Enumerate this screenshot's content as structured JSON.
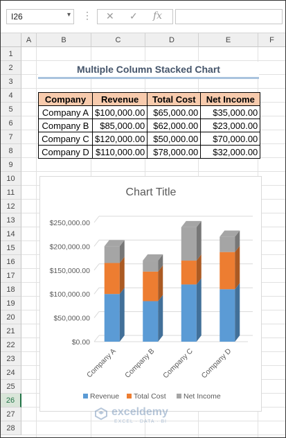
{
  "namebox": {
    "value": "I26"
  },
  "formula_buttons": {
    "cancel": "✕",
    "enter": "✓",
    "fx": "fx"
  },
  "formula": {
    "value": ""
  },
  "columns": [
    "A",
    "B",
    "C",
    "D",
    "E",
    "F"
  ],
  "rows": [
    "1",
    "2",
    "3",
    "4",
    "5",
    "6",
    "7",
    "8",
    "9",
    "10",
    "11",
    "12",
    "13",
    "14",
    "15",
    "16",
    "17",
    "18",
    "19",
    "20",
    "21",
    "22",
    "23",
    "24",
    "25",
    "26",
    "27",
    "28"
  ],
  "selected_row": "26",
  "sheet_title": "Multiple Column Stacked Chart",
  "table": {
    "headers": [
      "Company",
      "Revenue",
      "Total Cost",
      "Net Income"
    ],
    "rows": [
      [
        "Company A",
        "$100,000.00",
        "$65,000.00",
        "$35,000.00"
      ],
      [
        "Company B",
        "$85,000.00",
        "$62,000.00",
        "$23,000.00"
      ],
      [
        "Company C",
        "$120,000.00",
        "$50,000.00",
        "$70,000.00"
      ],
      [
        "Company D",
        "$110,000.00",
        "$78,000.00",
        "$32,000.00"
      ]
    ]
  },
  "chart_data": {
    "type": "bar",
    "stacked": true,
    "three_d": true,
    "title": "Chart Title",
    "categories": [
      "Company A",
      "Company B",
      "Company C",
      "Company D"
    ],
    "series": [
      {
        "name": "Revenue",
        "values": [
          100000,
          85000,
          120000,
          110000
        ],
        "color": "#5b9bd5"
      },
      {
        "name": "Total Cost",
        "values": [
          65000,
          62000,
          50000,
          78000
        ],
        "color": "#ed7d31"
      },
      {
        "name": "Net Income",
        "values": [
          35000,
          23000,
          70000,
          32000
        ],
        "color": "#a5a5a5"
      }
    ],
    "y_ticks": [
      "$0.00",
      "$50,000.00",
      "$100,000.00",
      "$150,000.00",
      "$200,000.00",
      "$250,000.00"
    ],
    "ylim": [
      0,
      250000
    ],
    "legend_position": "bottom",
    "grid": true
  },
  "watermark": {
    "name": "exceldemy",
    "sub": "EXCEL · DATA · BI"
  }
}
